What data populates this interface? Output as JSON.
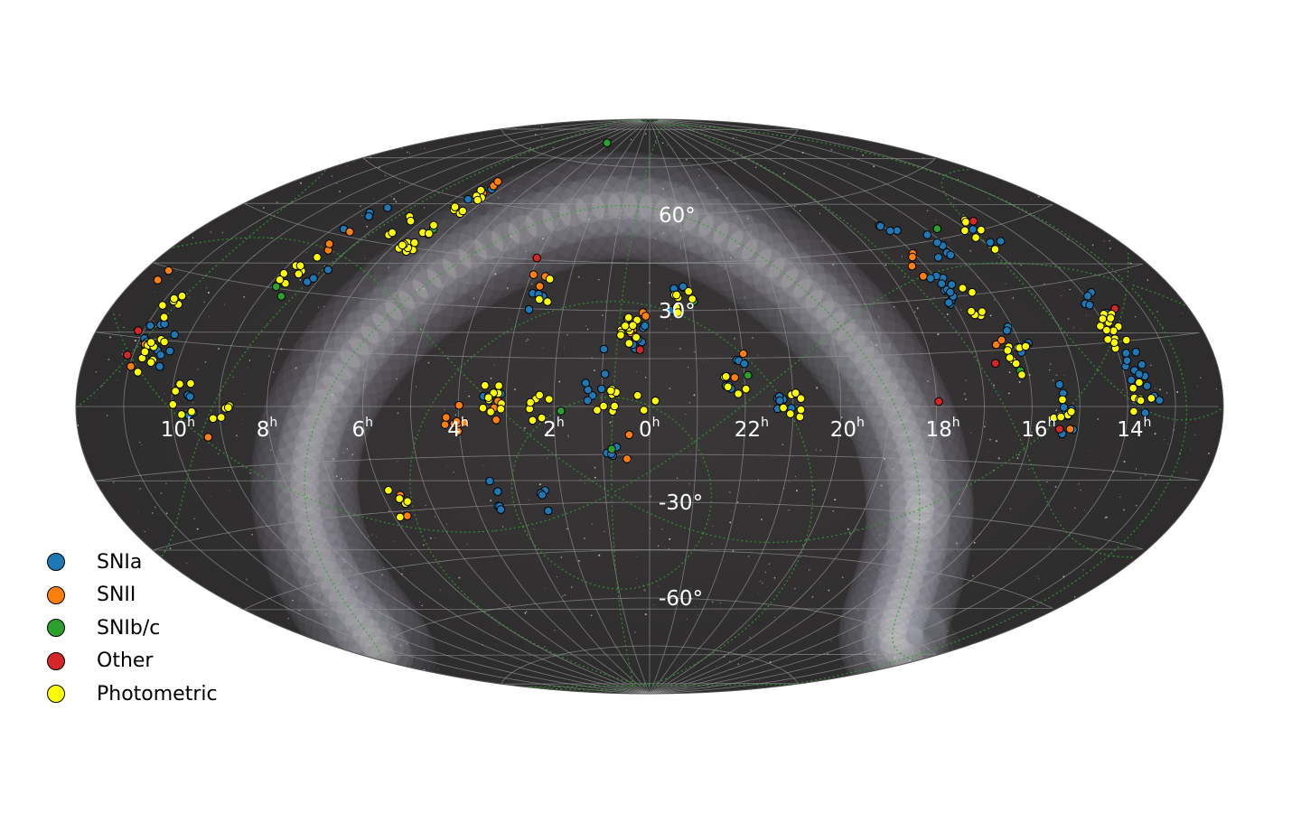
{
  "chart_data": {
    "type": "scatter",
    "projection": "aitoff",
    "title": "",
    "xlabel": "",
    "ylabel": "",
    "xaxis": "right ascension (hours, increasing to the left)",
    "ra_ticks": [
      {
        "h": 10,
        "label": "10",
        "unit": "h"
      },
      {
        "h": 8,
        "label": "8",
        "unit": "h"
      },
      {
        "h": 6,
        "label": "6",
        "unit": "h"
      },
      {
        "h": 4,
        "label": "4",
        "unit": "h"
      },
      {
        "h": 2,
        "label": "2",
        "unit": "h"
      },
      {
        "h": 0,
        "label": "0",
        "unit": "h"
      },
      {
        "h": 22,
        "label": "22",
        "unit": "h"
      },
      {
        "h": 20,
        "label": "20",
        "unit": "h"
      },
      {
        "h": 18,
        "label": "18",
        "unit": "h"
      },
      {
        "h": 16,
        "label": "16",
        "unit": "h"
      },
      {
        "h": 14,
        "label": "14",
        "unit": "h"
      }
    ],
    "dec_ticks": [
      {
        "deg": 60,
        "label": "60°"
      },
      {
        "deg": 30,
        "label": "30°"
      },
      {
        "deg": -30,
        "label": "-30°"
      },
      {
        "deg": -60,
        "label": "-60°"
      }
    ],
    "grid": true,
    "background": "milky way all-sky image",
    "legend_position": "bottom-left",
    "series": [
      {
        "name": "SNIa",
        "color": "#1f77b4",
        "clusters": [
          {
            "ra": 10.8,
            "dec": 15,
            "n": 6
          },
          {
            "ra": 10.3,
            "dec": 12,
            "n": 5
          },
          {
            "ra": 9.7,
            "dec": 0,
            "n": 4
          },
          {
            "ra": 8.6,
            "dec": 50,
            "n": 4
          },
          {
            "ra": 8.0,
            "dec": 35,
            "n": 3
          },
          {
            "ra": 6.4,
            "dec": 60,
            "n": 3
          },
          {
            "ra": 3.3,
            "dec": 0,
            "n": 4
          },
          {
            "ra": 2.6,
            "dec": 34,
            "n": 4
          },
          {
            "ra": 3.4,
            "dec": -27,
            "n": 5
          },
          {
            "ra": 2.4,
            "dec": -28,
            "n": 4
          },
          {
            "ra": 1.2,
            "dec": 3,
            "n": 5
          },
          {
            "ra": 0.3,
            "dec": 22,
            "n": 10
          },
          {
            "ra": 1.1,
            "dec": 14,
            "n": 2
          },
          {
            "ra": 0.9,
            "dec": -14,
            "n": 4
          },
          {
            "ra": 22.2,
            "dec": 10,
            "n": 7
          },
          {
            "ra": 21.2,
            "dec": 0,
            "n": 6
          },
          {
            "ra": 23.3,
            "dec": 33,
            "n": 4
          },
          {
            "ra": 16.9,
            "dec": 32,
            "n": 12
          },
          {
            "ra": 16.3,
            "dec": 45,
            "n": 6
          },
          {
            "ra": 16.0,
            "dec": 17,
            "n": 4
          },
          {
            "ra": 15.3,
            "dec": 2,
            "n": 5
          },
          {
            "ra": 13.8,
            "dec": 10,
            "n": 10
          },
          {
            "ra": 13.9,
            "dec": 24,
            "n": 5
          },
          {
            "ra": 13.5,
            "dec": 2,
            "n": 4
          },
          {
            "ra": 15.2,
            "dec": -5,
            "n": 3
          },
          {
            "ra": 14.8,
            "dec": 45,
            "n": 3
          },
          {
            "ra": 17.0,
            "dec": 50,
            "n": 4
          }
        ]
      },
      {
        "name": "SNII",
        "color": "#ff7f0e",
        "clusters": [
          {
            "ra": 11.4,
            "dec": 30,
            "n": 2
          },
          {
            "ra": 10.8,
            "dec": 12,
            "n": 2
          },
          {
            "ra": 8.6,
            "dec": 45,
            "n": 3
          },
          {
            "ra": 6.3,
            "dec": 62,
            "n": 3
          },
          {
            "ra": 4.1,
            "dec": -4,
            "n": 8
          },
          {
            "ra": 5.7,
            "dec": -28,
            "n": 3
          },
          {
            "ra": 3.1,
            "dec": 0,
            "n": 3
          },
          {
            "ra": 2.8,
            "dec": 38,
            "n": 3
          },
          {
            "ra": 0.3,
            "dec": 27,
            "n": 4
          },
          {
            "ra": 0.6,
            "dec": -13,
            "n": 2
          },
          {
            "ra": 22.2,
            "dec": 13,
            "n": 2
          },
          {
            "ra": 17.2,
            "dec": 40,
            "n": 4
          },
          {
            "ra": 16.4,
            "dec": 20,
            "n": 2
          },
          {
            "ra": 15.2,
            "dec": -3,
            "n": 2
          },
          {
            "ra": 9.5,
            "dec": -4,
            "n": 1
          }
        ]
      },
      {
        "name": "SNIb/c",
        "color": "#2ca02c",
        "clusters": [
          {
            "ra": 8.7,
            "dec": 32,
            "n": 2
          },
          {
            "ra": 6.6,
            "dec": 52,
            "n": 1
          },
          {
            "ra": 4.4,
            "dec": 84,
            "n": 1
          },
          {
            "ra": 2.0,
            "dec": -4,
            "n": 1
          },
          {
            "ra": 0.9,
            "dec": -13,
            "n": 1
          },
          {
            "ra": 21.9,
            "dec": 9,
            "n": 1
          },
          {
            "ra": 23.0,
            "dec": 34,
            "n": 1
          },
          {
            "ra": 16.2,
            "dec": 9,
            "n": 1
          },
          {
            "ra": 15.6,
            "dec": 48,
            "n": 1
          }
        ]
      },
      {
        "name": "Other",
        "color": "#d62728",
        "clusters": [
          {
            "ra": 11.0,
            "dec": 12,
            "n": 2
          },
          {
            "ra": 2.9,
            "dec": 43,
            "n": 1
          },
          {
            "ra": 0.2,
            "dec": 18,
            "n": 1
          },
          {
            "ra": 17.8,
            "dec": 3,
            "n": 1
          },
          {
            "ra": 16.7,
            "dec": 16,
            "n": 1
          },
          {
            "ra": 15.2,
            "dec": -8,
            "n": 1
          },
          {
            "ra": 14.7,
            "dec": 48,
            "n": 1
          },
          {
            "ra": 13.4,
            "dec": 22,
            "n": 1
          }
        ]
      },
      {
        "name": "Photometric",
        "color": "#ffff00",
        "clusters": [
          {
            "ra": 10.6,
            "dec": 12,
            "n": 10
          },
          {
            "ra": 10.8,
            "dec": 22,
            "n": 6
          },
          {
            "ra": 9.8,
            "dec": 1,
            "n": 6
          },
          {
            "ra": 9.0,
            "dec": 0,
            "n": 5
          },
          {
            "ra": 8.7,
            "dec": 35,
            "n": 8
          },
          {
            "ra": 6.6,
            "dec": 48,
            "n": 12
          },
          {
            "ra": 6.4,
            "dec": 60,
            "n": 8
          },
          {
            "ra": 7.5,
            "dec": 50,
            "n": 4
          },
          {
            "ra": 3.3,
            "dec": 2,
            "n": 10
          },
          {
            "ra": 2.3,
            "dec": 0,
            "n": 8
          },
          {
            "ra": 5.7,
            "dec": -28,
            "n": 5
          },
          {
            "ra": 0.5,
            "dec": 24,
            "n": 14
          },
          {
            "ra": 0.9,
            "dec": 3,
            "n": 8
          },
          {
            "ra": 0.1,
            "dec": 1,
            "n": 3
          },
          {
            "ra": 23.2,
            "dec": 32,
            "n": 8
          },
          {
            "ra": 22.2,
            "dec": 8,
            "n": 5
          },
          {
            "ra": 21.0,
            "dec": 0,
            "n": 8
          },
          {
            "ra": 16.1,
            "dec": 12,
            "n": 10
          },
          {
            "ra": 16.6,
            "dec": 28,
            "n": 6
          },
          {
            "ra": 15.4,
            "dec": 0,
            "n": 6
          },
          {
            "ra": 13.9,
            "dec": 18,
            "n": 14
          },
          {
            "ra": 13.7,
            "dec": 3,
            "n": 8
          },
          {
            "ra": 14.9,
            "dec": 44,
            "n": 6
          },
          {
            "ra": 2.4,
            "dec": 36,
            "n": 3
          }
        ]
      }
    ]
  },
  "legend": [
    {
      "label": "SNIa",
      "color": "#1f77b4"
    },
    {
      "label": "SNII",
      "color": "#ff7f0e"
    },
    {
      "label": "SNIb/c",
      "color": "#2ca02c"
    },
    {
      "label": "Other",
      "color": "#d62728"
    },
    {
      "label": "Photometric",
      "color": "#ffff00"
    }
  ]
}
